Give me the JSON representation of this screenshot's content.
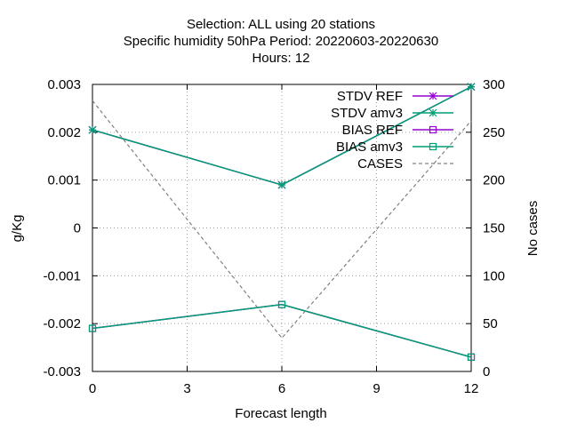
{
  "chart_data": {
    "type": "line",
    "title_lines": [
      "Selection: ALL using    20 stations",
      "Specific humidity 50hPa   Period: 20220603-20220630",
      "Hours:  12"
    ],
    "xlabel": "Forecast length",
    "ylabel": "g/Kg",
    "y2label": "No cases",
    "x": [
      0,
      6,
      12
    ],
    "xlim": [
      0,
      12
    ],
    "ylim": [
      -0.003,
      0.003
    ],
    "y2lim": [
      0,
      300
    ],
    "xticks": [
      0,
      3,
      6,
      9,
      12
    ],
    "xtick_labels": [
      "0",
      "3",
      "6",
      "9",
      "12"
    ],
    "yticks": [
      0.003,
      0.002,
      0.001,
      0,
      -0.001,
      -0.002,
      -0.003
    ],
    "ytick_labels": [
      "0.003",
      "0.002",
      "0.001",
      "0",
      "-0.001",
      "-0.002",
      "-0.003"
    ],
    "y2ticks": [
      300,
      250,
      200,
      150,
      100,
      50,
      0
    ],
    "y2tick_labels": [
      "300",
      "250",
      "200",
      "150",
      "100",
      "50",
      "0"
    ],
    "grid": true,
    "legend_position": "top-right",
    "series": [
      {
        "name": "STDV REF",
        "axis": "y1",
        "color": "#9400d3",
        "marker": "star",
        "dash": false,
        "values": [
          0.00205,
          0.0009,
          0.00295
        ]
      },
      {
        "name": "STDV amv3",
        "axis": "y1",
        "color": "#009e73",
        "marker": "star",
        "dash": false,
        "values": [
          0.00205,
          0.0009,
          0.00295
        ]
      },
      {
        "name": "BIAS REF",
        "axis": "y1",
        "color": "#9400d3",
        "marker": "square",
        "dash": false,
        "values": [
          -0.0021,
          -0.0016,
          -0.0027
        ]
      },
      {
        "name": "BIAS amv3",
        "axis": "y1",
        "color": "#009e73",
        "marker": "square",
        "dash": false,
        "values": [
          -0.0021,
          -0.0016,
          -0.0027
        ]
      },
      {
        "name": "CASES",
        "axis": "y2",
        "color": "#808080",
        "marker": "none",
        "dash": true,
        "values": [
          283,
          35,
          262
        ]
      }
    ]
  }
}
